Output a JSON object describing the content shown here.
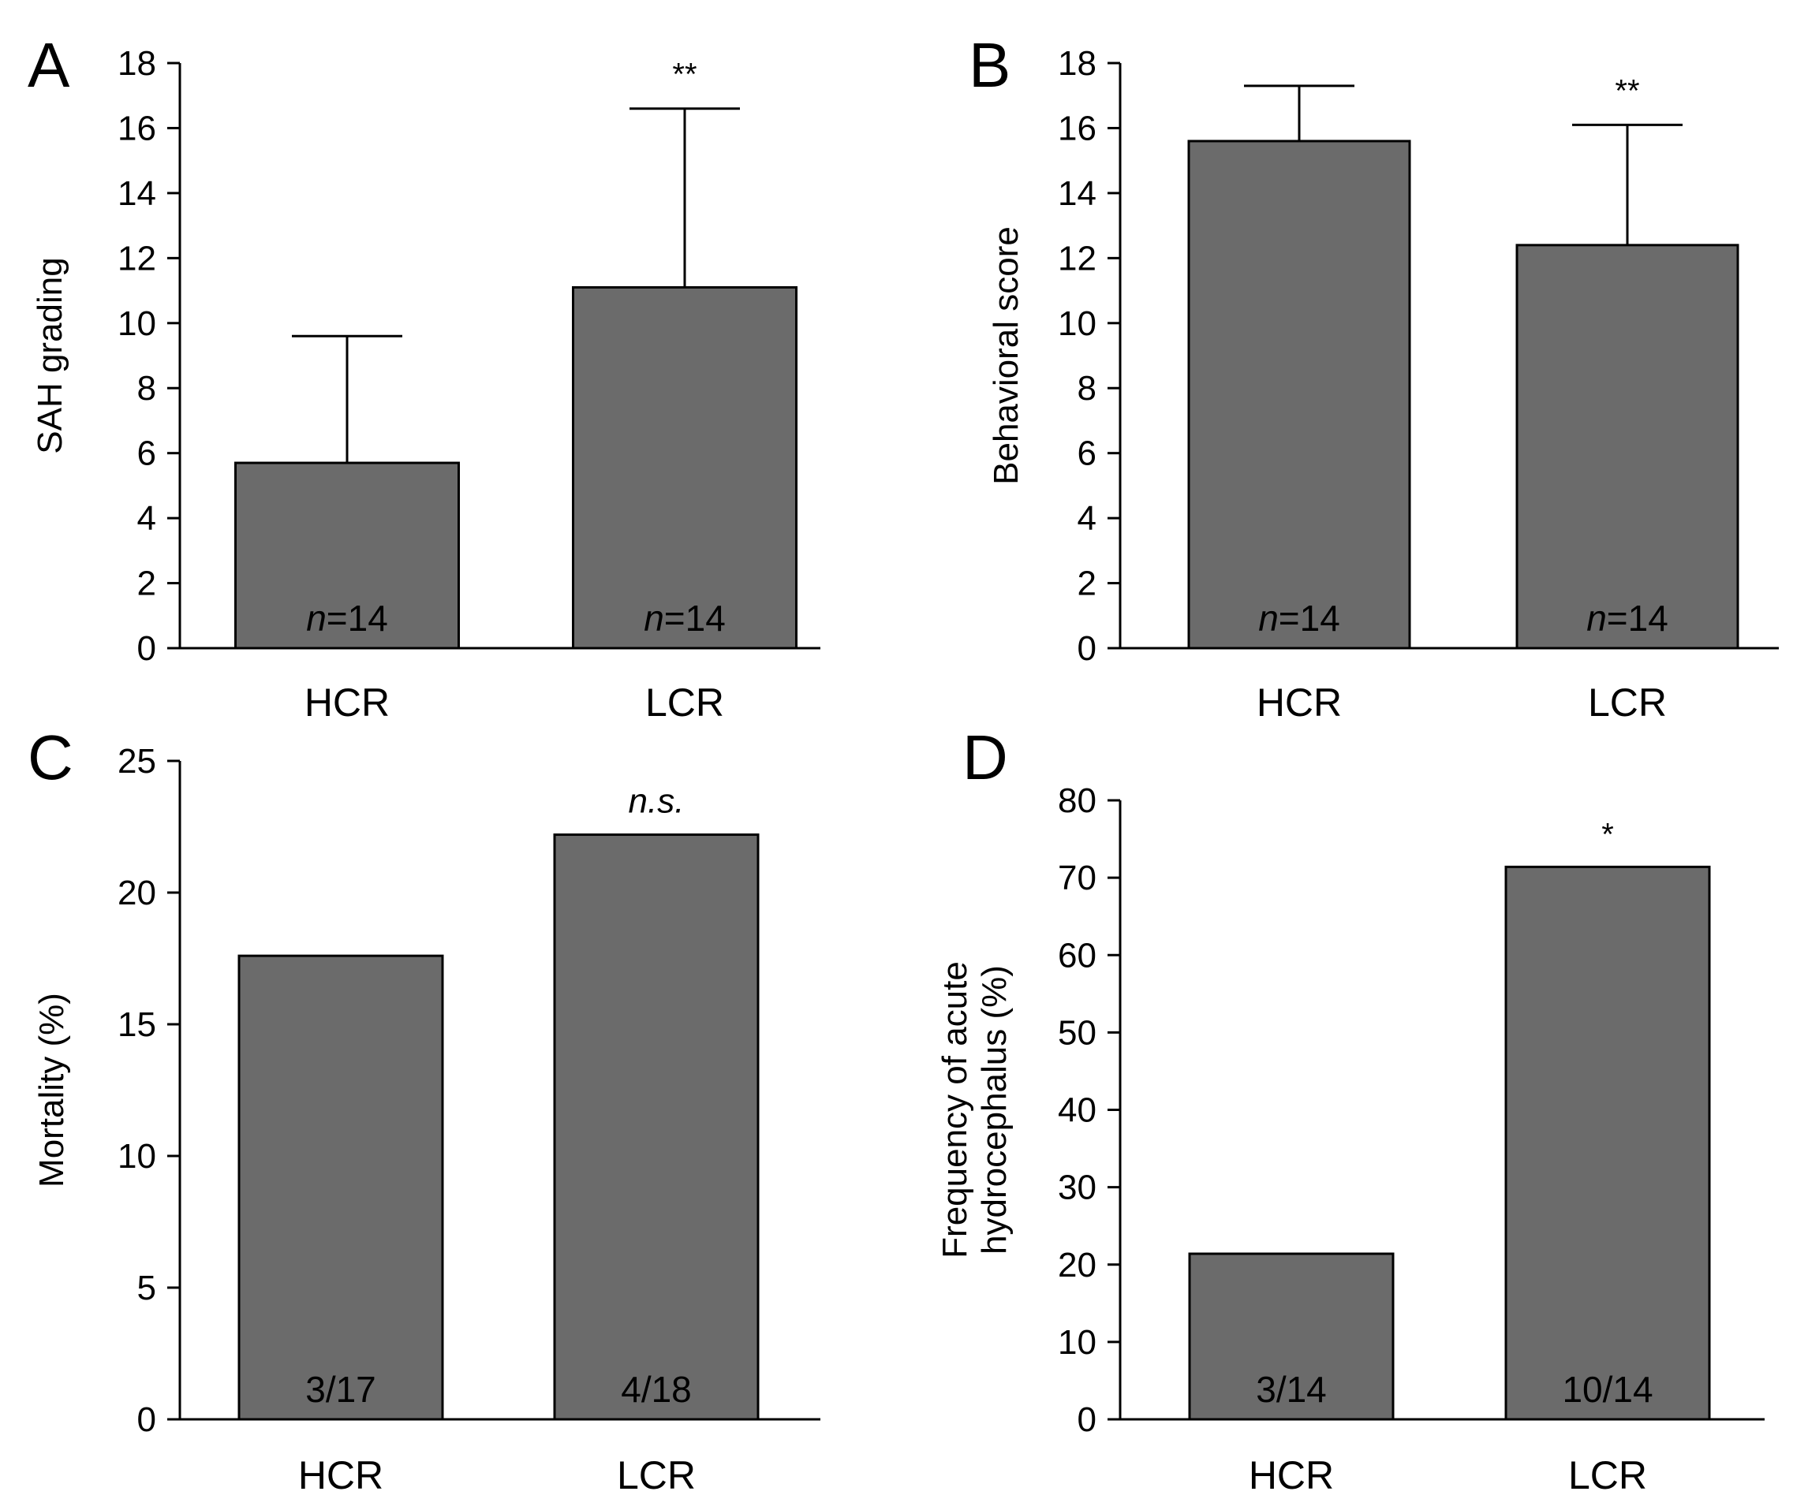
{
  "figure": {
    "bar_color": "#6b6b6b",
    "stroke_color": "#000000",
    "background": "#ffffff"
  },
  "chart_data": [
    {
      "panel": "A",
      "type": "bar",
      "categories": [
        "HCR",
        "LCR"
      ],
      "values": [
        5.7,
        11.1
      ],
      "error": [
        3.9,
        5.5
      ],
      "bar_labels": [
        {
          "prefix": "n",
          "suffix": "=14"
        },
        {
          "prefix": "n",
          "suffix": "=14"
        }
      ],
      "significance": [
        "",
        "**"
      ],
      "ylabel": "SAH grading",
      "xlabel": "",
      "ylim": [
        0,
        18
      ],
      "yticks": [
        0,
        2,
        4,
        6,
        8,
        10,
        12,
        14,
        16,
        18
      ],
      "grid": false
    },
    {
      "panel": "B",
      "type": "bar",
      "categories": [
        "HCR",
        "LCR"
      ],
      "values": [
        15.6,
        12.4
      ],
      "error": [
        1.7,
        3.7
      ],
      "bar_labels": [
        {
          "prefix": "n",
          "suffix": "=14"
        },
        {
          "prefix": "n",
          "suffix": "=14"
        }
      ],
      "significance": [
        "",
        "**"
      ],
      "ylabel": "Behavioral score",
      "xlabel": "",
      "ylim": [
        0,
        18
      ],
      "yticks": [
        0,
        2,
        4,
        6,
        8,
        10,
        12,
        14,
        16,
        18
      ],
      "grid": false
    },
    {
      "panel": "C",
      "type": "bar",
      "categories": [
        "HCR",
        "LCR"
      ],
      "values": [
        17.6,
        22.2
      ],
      "error": [
        0,
        0
      ],
      "bar_labels": [
        {
          "prefix": "",
          "suffix": "3/17"
        },
        {
          "prefix": "",
          "suffix": "4/18"
        }
      ],
      "significance": [
        "",
        "n.s."
      ],
      "significance_italic": true,
      "ylabel": "Mortality (%)",
      "xlabel": "",
      "ylim": [
        0,
        25
      ],
      "yticks": [
        0,
        5,
        10,
        15,
        20,
        25
      ],
      "grid": false
    },
    {
      "panel": "D",
      "type": "bar",
      "categories": [
        "HCR",
        "LCR"
      ],
      "values": [
        21.4,
        71.4
      ],
      "error": [
        0,
        0
      ],
      "bar_labels": [
        {
          "prefix": "",
          "suffix": "3/14"
        },
        {
          "prefix": "",
          "suffix": "10/14"
        }
      ],
      "significance": [
        "",
        "*"
      ],
      "ylabel_lines": [
        "Frequency of acute",
        "hydrocephalus (%)"
      ],
      "xlabel": "",
      "ylim": [
        0,
        80
      ],
      "yticks": [
        0,
        10,
        20,
        30,
        40,
        50,
        60,
        70,
        80
      ],
      "grid": false
    }
  ]
}
